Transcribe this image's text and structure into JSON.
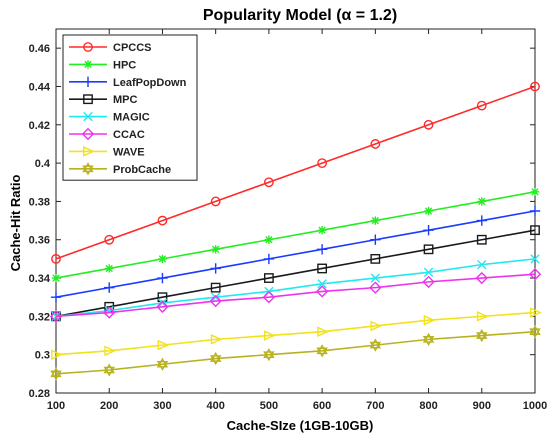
{
  "chart_data": {
    "type": "line",
    "title": "Popularity Model (α = 1.2)",
    "xlabel": "Cache-SIze (1GB-10GB)",
    "ylabel": "Cache-Hit Ratio",
    "x": [
      100,
      200,
      300,
      400,
      500,
      600,
      700,
      800,
      900,
      1000
    ],
    "xlim": [
      100,
      1000
    ],
    "ylim": [
      0.28,
      0.47
    ],
    "xticks": [
      "100",
      "200",
      "300",
      "400",
      "500",
      "600",
      "700",
      "800",
      "900",
      "1000"
    ],
    "yticks": [
      "0.28",
      "0.3",
      "0.32",
      "0.34",
      "0.36",
      "0.38",
      "0.4",
      "0.42",
      "0.44",
      "0.46"
    ],
    "grid": false,
    "legend_position": "top-left",
    "series": [
      {
        "name": "CPCCS",
        "color": "#ff2a2a",
        "marker": "circle",
        "values": [
          0.35,
          0.36,
          0.37,
          0.38,
          0.39,
          0.4,
          0.41,
          0.42,
          0.43,
          0.44
        ]
      },
      {
        "name": "HPC",
        "color": "#22ee22",
        "marker": "asterisk",
        "values": [
          0.34,
          0.345,
          0.35,
          0.355,
          0.36,
          0.365,
          0.37,
          0.375,
          0.38,
          0.385
        ]
      },
      {
        "name": "LeafPopDown",
        "color": "#1a3cff",
        "marker": "plus",
        "values": [
          0.33,
          0.335,
          0.34,
          0.345,
          0.35,
          0.355,
          0.36,
          0.365,
          0.37,
          0.375
        ]
      },
      {
        "name": "MPC",
        "color": "#1a1a1a",
        "marker": "square",
        "values": [
          0.32,
          0.325,
          0.33,
          0.335,
          0.34,
          0.345,
          0.35,
          0.355,
          0.36,
          0.365
        ]
      },
      {
        "name": "MAGIC",
        "color": "#22e8f0",
        "marker": "x",
        "values": [
          0.32,
          0.323,
          0.327,
          0.33,
          0.333,
          0.337,
          0.34,
          0.343,
          0.347,
          0.35
        ]
      },
      {
        "name": "CCAC",
        "color": "#ee33ee",
        "marker": "diamond",
        "values": [
          0.32,
          0.322,
          0.325,
          0.328,
          0.33,
          0.333,
          0.335,
          0.338,
          0.34,
          0.342
        ]
      },
      {
        "name": "WAVE",
        "color": "#f2e21a",
        "marker": "triangle-right",
        "values": [
          0.3,
          0.302,
          0.305,
          0.308,
          0.31,
          0.312,
          0.315,
          0.318,
          0.32,
          0.322
        ]
      },
      {
        "name": "ProbCache",
        "color": "#b8b21e",
        "marker": "hexagram",
        "values": [
          0.29,
          0.292,
          0.295,
          0.298,
          0.3,
          0.302,
          0.305,
          0.308,
          0.31,
          0.312
        ]
      }
    ]
  }
}
